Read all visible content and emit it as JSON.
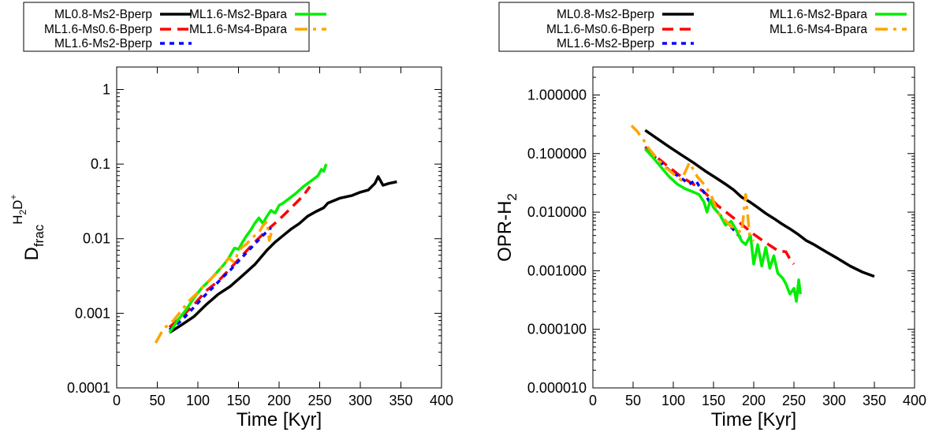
{
  "chart_data": [
    {
      "type": "line",
      "xlabel": "Time [Kyr]",
      "ylabel": "D_frac H2D+",
      "ylabel_parts": {
        "main": "D",
        "sub": "frac",
        "sup_a": "H",
        "sup_sub": "2",
        "sup_b": "D",
        "sup_sup": "+"
      },
      "xlim": [
        0,
        400
      ],
      "ylim": [
        0.0001,
        2
      ],
      "yscale": "log",
      "xticks": [
        0,
        50,
        100,
        150,
        200,
        250,
        300,
        350,
        400
      ],
      "xtick_labels": [
        "0",
        "50",
        "100",
        "150",
        "200",
        "250",
        "300",
        "350",
        "400"
      ],
      "yticks": [
        0.0001,
        0.001,
        0.01,
        0.1,
        1
      ],
      "ytick_labels": [
        "0.0001",
        "0.001",
        "0.01",
        "0.1",
        "1"
      ],
      "legend": "top",
      "series": [
        {
          "name": "ML0.8-Ms2-Bperp",
          "color": "#000000",
          "dash": "solid",
          "x": [
            65,
            80,
            95,
            110,
            125,
            140,
            155,
            170,
            185,
            195,
            205,
            215,
            225,
            235,
            245,
            255,
            260,
            275,
            290,
            300,
            310,
            318,
            322,
            328,
            335,
            345
          ],
          "y": [
            0.00055,
            0.0007,
            0.0009,
            0.0013,
            0.0018,
            0.0023,
            0.0032,
            0.0045,
            0.007,
            0.009,
            0.011,
            0.0135,
            0.016,
            0.02,
            0.023,
            0.026,
            0.03,
            0.035,
            0.038,
            0.042,
            0.045,
            0.055,
            0.068,
            0.052,
            0.055,
            0.058
          ]
        },
        {
          "name": "ML1.6-Ms0.6-Bperp",
          "color": "#ff0000",
          "dash": "long",
          "x": [
            65,
            80,
            95,
            110,
            125,
            140,
            155,
            170,
            185,
            200,
            215,
            230,
            238
          ],
          "y": [
            0.00065,
            0.0009,
            0.0013,
            0.002,
            0.0027,
            0.004,
            0.006,
            0.009,
            0.013,
            0.018,
            0.026,
            0.038,
            0.05
          ]
        },
        {
          "name": "ML1.6-Ms2-Bperp",
          "color": "#0000ff",
          "dash": "short",
          "x": [
            65,
            80,
            95,
            110,
            120,
            130,
            140,
            150,
            160,
            170,
            180,
            190
          ],
          "y": [
            0.0006,
            0.0008,
            0.0012,
            0.0018,
            0.0023,
            0.003,
            0.0038,
            0.005,
            0.0065,
            0.0085,
            0.011,
            0.014
          ]
        },
        {
          "name": "ML1.6-Ms2-Bpara",
          "color": "#00ee00",
          "dash": "solid",
          "x": [
            65,
            75,
            85,
            95,
            105,
            115,
            125,
            132,
            138,
            145,
            150,
            155,
            160,
            165,
            170,
            175,
            180,
            185,
            190,
            195,
            200,
            205,
            210,
            220,
            230,
            240,
            248,
            252,
            255,
            258
          ],
          "y": [
            0.00055,
            0.0008,
            0.0011,
            0.0016,
            0.0022,
            0.0028,
            0.0037,
            0.0045,
            0.0055,
            0.0075,
            0.0072,
            0.009,
            0.011,
            0.013,
            0.016,
            0.019,
            0.016,
            0.02,
            0.024,
            0.022,
            0.028,
            0.03,
            0.033,
            0.04,
            0.05,
            0.06,
            0.07,
            0.085,
            0.08,
            0.1
          ]
        },
        {
          "name": "ML1.6-Ms4-Bpara",
          "color": "#ffa500",
          "dash": "dashdot",
          "x": [
            48,
            55,
            60,
            70,
            80,
            90,
            100,
            110,
            120,
            130,
            138,
            145,
            150,
            155,
            160,
            165,
            170,
            175,
            180,
            185,
            188,
            192
          ],
          "y": [
            0.0004,
            0.00055,
            0.00065,
            0.0008,
            0.0011,
            0.0015,
            0.0019,
            0.0025,
            0.0032,
            0.0042,
            0.0055,
            0.0048,
            0.0068,
            0.0078,
            0.0085,
            0.0098,
            0.011,
            0.012,
            0.015,
            0.017,
            0.0095,
            0.014
          ]
        }
      ]
    },
    {
      "type": "line",
      "xlabel": "Time [Kyr]",
      "ylabel": "OPR-H2",
      "ylabel_parts": {
        "main": "OPR-H",
        "sub": "2"
      },
      "xlim": [
        0,
        400
      ],
      "ylim": [
        1e-05,
        3
      ],
      "yscale": "log",
      "xticks": [
        0,
        50,
        100,
        150,
        200,
        250,
        300,
        350,
        400
      ],
      "xtick_labels": [
        "0",
        "50",
        "100",
        "150",
        "200",
        "250",
        "300",
        "350",
        "400"
      ],
      "yticks": [
        1e-05,
        0.0001,
        0.001,
        0.01,
        0.1,
        1
      ],
      "ytick_labels": [
        "0.000010",
        "0.000100",
        "0.001000",
        "0.010000",
        "0.100000",
        "1.000000"
      ],
      "legend": "top",
      "series": [
        {
          "name": "ML0.8-Ms2-Bperp",
          "color": "#000000",
          "dash": "solid",
          "x": [
            65,
            80,
            95,
            110,
            125,
            140,
            155,
            165,
            175,
            185,
            195,
            205,
            215,
            225,
            235,
            245,
            255,
            265,
            275,
            290,
            305,
            320,
            335,
            350
          ],
          "y": [
            0.25,
            0.18,
            0.13,
            0.095,
            0.07,
            0.05,
            0.037,
            0.03,
            0.024,
            0.018,
            0.015,
            0.012,
            0.0095,
            0.0078,
            0.0063,
            0.0052,
            0.0042,
            0.0033,
            0.0028,
            0.0021,
            0.0016,
            0.0012,
            0.00095,
            0.0008
          ]
        },
        {
          "name": "ML1.6-Ms0.6-Bperp",
          "color": "#ff0000",
          "dash": "long",
          "x": [
            65,
            80,
            95,
            110,
            125,
            140,
            155,
            170,
            185,
            200,
            215,
            230,
            240,
            246,
            250
          ],
          "y": [
            0.13,
            0.085,
            0.058,
            0.04,
            0.03,
            0.021,
            0.013,
            0.009,
            0.0062,
            0.0042,
            0.003,
            0.0022,
            0.0021,
            0.0015,
            0.0013
          ]
        },
        {
          "name": "ML1.6-Ms2-Bperp",
          "color": "#0000ff",
          "dash": "short",
          "x": [
            65,
            80,
            95,
            110,
            120,
            128,
            132,
            138,
            145,
            155,
            165,
            175,
            185
          ],
          "y": [
            0.12,
            0.08,
            0.052,
            0.038,
            0.03,
            0.035,
            0.028,
            0.022,
            0.015,
            0.01,
            0.007,
            0.005,
            0.0035
          ]
        },
        {
          "name": "ML1.6-Ms2-Bpara",
          "color": "#00ee00",
          "dash": "solid",
          "x": [
            65,
            75,
            85,
            95,
            105,
            115,
            125,
            132,
            138,
            142,
            146,
            150,
            158,
            165,
            172,
            178,
            185,
            190,
            196,
            200,
            205,
            210,
            215,
            220,
            225,
            230,
            236,
            240,
            245,
            250,
            253,
            256,
            258
          ],
          "y": [
            0.12,
            0.085,
            0.058,
            0.04,
            0.03,
            0.025,
            0.022,
            0.02,
            0.015,
            0.01,
            0.016,
            0.012,
            0.009,
            0.006,
            0.007,
            0.005,
            0.0032,
            0.0028,
            0.004,
            0.0013,
            0.0028,
            0.0012,
            0.0025,
            0.0011,
            0.0018,
            0.0009,
            0.00075,
            0.0006,
            0.0004,
            0.0005,
            0.0003,
            0.0007,
            0.0004
          ]
        },
        {
          "name": "ML1.6-Ms4-Bpara",
          "color": "#ffa500",
          "dash": "dashdot",
          "x": [
            48,
            55,
            62,
            70,
            80,
            90,
            100,
            110,
            120,
            130,
            140,
            148,
            155,
            162,
            170,
            178,
            185,
            190,
            195,
            200
          ],
          "y": [
            0.3,
            0.24,
            0.18,
            0.12,
            0.082,
            0.058,
            0.045,
            0.035,
            0.07,
            0.04,
            0.028,
            0.018,
            0.01,
            0.008,
            0.006,
            0.005,
            0.0045,
            0.02,
            0.004,
            0.0032
          ]
        }
      ]
    }
  ]
}
